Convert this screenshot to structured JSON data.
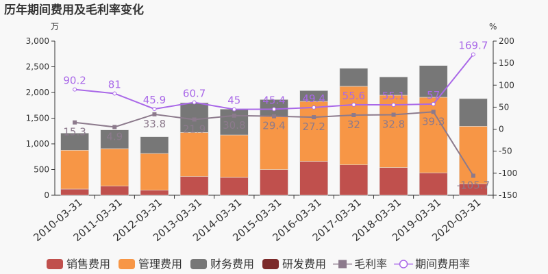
{
  "chart_data": {
    "type": "bar",
    "title": "历年期间费用及毛利率变化",
    "ylabel_left": "万",
    "ylabel_right": "%",
    "ylim_left": [
      0,
      3000
    ],
    "yticks_left": [
      "0",
      "500",
      "1,000",
      "1,500",
      "2,000",
      "2,500",
      "3,000"
    ],
    "ylim_right": [
      -150,
      200
    ],
    "yticks_right": [
      "-150",
      "-100",
      "-50",
      "0",
      "50",
      "100",
      "150",
      "200"
    ],
    "categories": [
      "2010-03-31",
      "2011-03-31",
      "2012-03-31",
      "2013-03-31",
      "2014-03-31",
      "2015-03-31",
      "2016-03-31",
      "2017-03-31",
      "2018-03-31",
      "2019-03-31",
      "2020-03-31"
    ],
    "series": [
      {
        "name": "销售费用",
        "kind": "bar",
        "axis": "left",
        "color": "#c0504d",
        "values": [
          120,
          177,
          98,
          365,
          347,
          498,
          658,
          591,
          538,
          435,
          222
        ]
      },
      {
        "name": "管理费用",
        "kind": "bar",
        "axis": "left",
        "color": "#f79646",
        "values": [
          756,
          730,
          715,
          857,
          826,
          1035,
          1169,
          1529,
          1409,
          1472,
          1120
        ]
      },
      {
        "name": "财务费用",
        "kind": "bar",
        "axis": "left",
        "color": "#777777",
        "values": [
          333,
          364,
          325,
          578,
          503,
          329,
          209,
          351,
          355,
          617,
          538
        ]
      },
      {
        "name": "研发费用",
        "kind": "bar",
        "axis": "left",
        "color": "#7b2a2a",
        "values": [
          0,
          0,
          0,
          0,
          0,
          0,
          0,
          0,
          0,
          0,
          0
        ]
      },
      {
        "name": "毛利率",
        "kind": "line",
        "axis": "right",
        "color": "#8c7a8c",
        "marker": "square",
        "values": [
          15.3,
          4.9,
          33.8,
          21.9,
          30.8,
          29.4,
          27.2,
          32,
          32.8,
          39.3,
          -105.7
        ]
      },
      {
        "name": "期间费用率",
        "kind": "line",
        "axis": "right",
        "color": "#a968e8",
        "marker": "hollow-circle",
        "values": [
          90.2,
          81,
          45.9,
          60.7,
          45,
          45.4,
          49.4,
          55.6,
          55.1,
          57,
          169.7
        ]
      }
    ],
    "legend_position": "bottom",
    "grid": false
  }
}
